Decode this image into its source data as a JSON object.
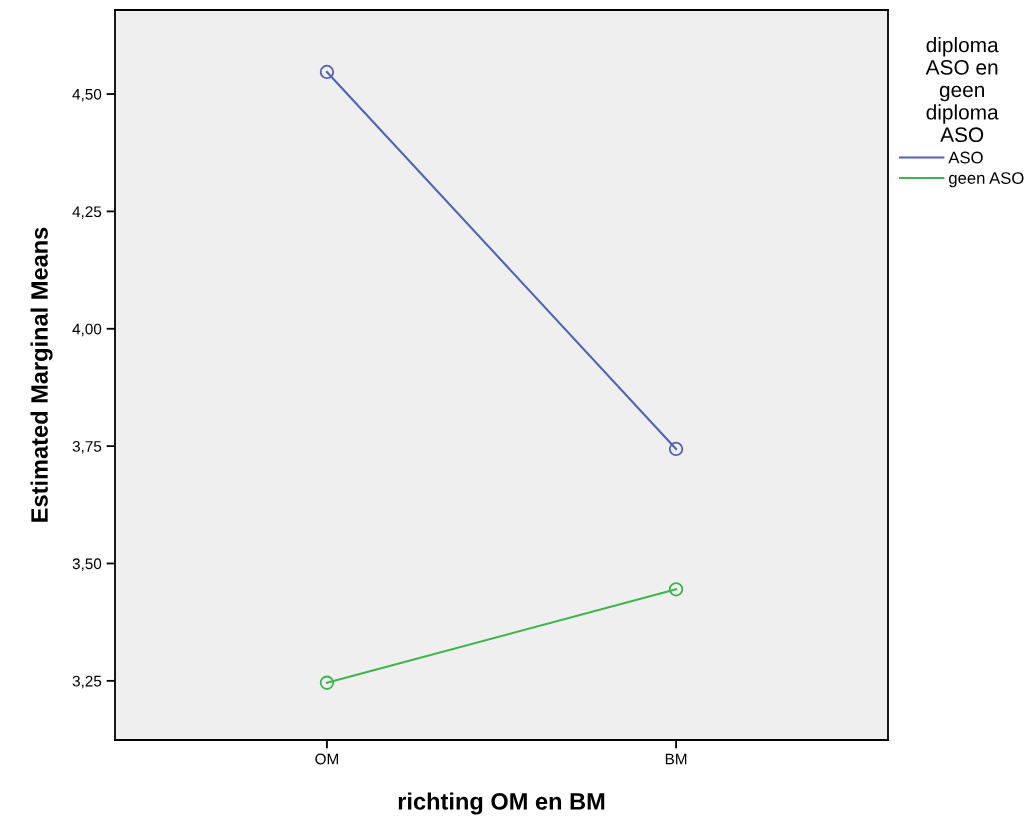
{
  "chart_data": {
    "type": "line",
    "xlabel": "richting OM en BM",
    "ylabel": "Estimated Marginal Means",
    "legend_title": "diploma\nASO en\ngeen\ndiploma\nASO",
    "categories": [
      "OM",
      "BM"
    ],
    "series": [
      {
        "name": "ASO",
        "color": "#5064b4",
        "values": [
          4.547,
          3.744
        ]
      },
      {
        "name": "geen ASO",
        "color": "#3cb44b",
        "values": [
          3.246,
          3.445
        ]
      }
    ],
    "ylim": [
      3.124,
      4.679
    ],
    "yticks": [
      {
        "value": 3.25,
        "label": "3,25"
      },
      {
        "value": 3.5,
        "label": "3,50"
      },
      {
        "value": 3.75,
        "label": "3,75"
      },
      {
        "value": 4.0,
        "label": "4,00"
      },
      {
        "value": 4.25,
        "label": "4,25"
      },
      {
        "value": 4.5,
        "label": "4,50"
      }
    ],
    "grid": false,
    "legend": "right",
    "marker": "circle",
    "line_style": "solid"
  }
}
